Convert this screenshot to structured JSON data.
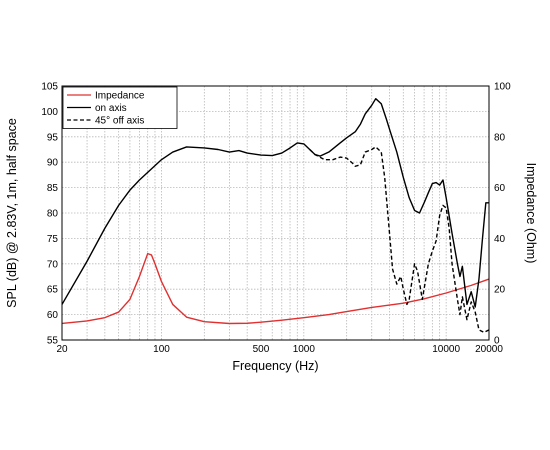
{
  "chart_data": {
    "type": "line",
    "title": "",
    "xlabel": "Frequency (Hz)",
    "ylabel": "SPL (dB) @ 2.83V, 1m, half space",
    "y2label": "Impedance (Ohm)",
    "x_scale": "log",
    "xlim": [
      20,
      20000
    ],
    "ylim": [
      55,
      105
    ],
    "y2lim": [
      0,
      100
    ],
    "grid": true,
    "legend_position": "top-left",
    "x_tick_labels": [
      {
        "value": 20,
        "label": "20"
      },
      {
        "value": 100,
        "label": "100"
      },
      {
        "value": 500,
        "label": "500"
      },
      {
        "value": 1000,
        "label": "1000"
      },
      {
        "value": 10000,
        "label": "10000"
      },
      {
        "value": 20000,
        "label": "20000"
      }
    ],
    "y_ticks": [
      55,
      60,
      65,
      70,
      75,
      80,
      85,
      90,
      95,
      100,
      105
    ],
    "y2_ticks": [
      0,
      20,
      40,
      60,
      80,
      100
    ],
    "series": [
      {
        "name": "Impedance",
        "axis": "right",
        "color": "#e03030",
        "dash": "solid",
        "points": [
          [
            20,
            6.5
          ],
          [
            30,
            7.5
          ],
          [
            40,
            8.8
          ],
          [
            50,
            11
          ],
          [
            60,
            16
          ],
          [
            70,
            25
          ],
          [
            80,
            34
          ],
          [
            85,
            33.5
          ],
          [
            90,
            30
          ],
          [
            100,
            23
          ],
          [
            120,
            14
          ],
          [
            150,
            9
          ],
          [
            200,
            7.2
          ],
          [
            300,
            6.5
          ],
          [
            400,
            6.6
          ],
          [
            500,
            7
          ],
          [
            700,
            7.8
          ],
          [
            1000,
            8.8
          ],
          [
            1500,
            10
          ],
          [
            2000,
            11.2
          ],
          [
            3000,
            12.8
          ],
          [
            5000,
            14.5
          ],
          [
            7000,
            16.2
          ],
          [
            10000,
            18.5
          ],
          [
            15000,
            21.5
          ],
          [
            20000,
            24
          ]
        ]
      },
      {
        "name": "on axis",
        "axis": "left",
        "color": "#000000",
        "dash": "solid",
        "points": [
          [
            20,
            62
          ],
          [
            30,
            70.5
          ],
          [
            40,
            77
          ],
          [
            50,
            81.5
          ],
          [
            60,
            84.5
          ],
          [
            70,
            86.5
          ],
          [
            80,
            88
          ],
          [
            100,
            90.5
          ],
          [
            120,
            92
          ],
          [
            150,
            93
          ],
          [
            200,
            92.8
          ],
          [
            250,
            92.5
          ],
          [
            300,
            92
          ],
          [
            350,
            92.3
          ],
          [
            400,
            91.8
          ],
          [
            500,
            91.4
          ],
          [
            600,
            91.3
          ],
          [
            700,
            91.8
          ],
          [
            800,
            92.8
          ],
          [
            900,
            93.8
          ],
          [
            1000,
            93.6
          ],
          [
            1100,
            92.5
          ],
          [
            1200,
            91.5
          ],
          [
            1300,
            91.2
          ],
          [
            1500,
            92
          ],
          [
            1800,
            93.8
          ],
          [
            2000,
            94.8
          ],
          [
            2300,
            96
          ],
          [
            2500,
            97.5
          ],
          [
            2700,
            99.5
          ],
          [
            3000,
            101.2
          ],
          [
            3200,
            102.5
          ],
          [
            3500,
            101.5
          ],
          [
            3800,
            98.5
          ],
          [
            4000,
            96.5
          ],
          [
            4500,
            92
          ],
          [
            5000,
            87
          ],
          [
            5500,
            83
          ],
          [
            6000,
            80.5
          ],
          [
            6500,
            80
          ],
          [
            7000,
            82
          ],
          [
            7500,
            84
          ],
          [
            8000,
            85.8
          ],
          [
            8500,
            86
          ],
          [
            9000,
            85.5
          ],
          [
            9500,
            86.5
          ],
          [
            10000,
            83
          ],
          [
            11000,
            76
          ],
          [
            12000,
            70
          ],
          [
            12500,
            67.5
          ],
          [
            13000,
            69.5
          ],
          [
            14000,
            62
          ],
          [
            15000,
            64.5
          ],
          [
            16000,
            61.5
          ],
          [
            17000,
            67
          ],
          [
            18000,
            75
          ],
          [
            19000,
            82
          ],
          [
            20000,
            82
          ]
        ]
      },
      {
        "name": "45° off axis",
        "axis": "left",
        "color": "#000000",
        "dash": "dashed",
        "points": [
          [
            1100,
            92.5
          ],
          [
            1200,
            91.5
          ],
          [
            1400,
            90.5
          ],
          [
            1600,
            90.5
          ],
          [
            1800,
            91
          ],
          [
            2000,
            90.8
          ],
          [
            2200,
            89.8
          ],
          [
            2300,
            89.2
          ],
          [
            2500,
            89.5
          ],
          [
            2700,
            92
          ],
          [
            3000,
            92.5
          ],
          [
            3200,
            93
          ],
          [
            3500,
            92
          ],
          [
            3700,
            87
          ],
          [
            4000,
            76
          ],
          [
            4200,
            69
          ],
          [
            4500,
            66
          ],
          [
            4800,
            67.5
          ],
          [
            5000,
            65
          ],
          [
            5300,
            62
          ],
          [
            5500,
            63
          ],
          [
            6000,
            70
          ],
          [
            6300,
            68.5
          ],
          [
            6800,
            63
          ],
          [
            7500,
            70
          ],
          [
            8000,
            72.5
          ],
          [
            8500,
            74.5
          ],
          [
            9000,
            79.5
          ],
          [
            9500,
            81.5
          ],
          [
            10000,
            81
          ],
          [
            10500,
            77
          ],
          [
            11000,
            70
          ],
          [
            12000,
            63
          ],
          [
            12500,
            60
          ],
          [
            13000,
            63.5
          ],
          [
            14000,
            59
          ],
          [
            15000,
            62.5
          ],
          [
            16000,
            60.5
          ],
          [
            17000,
            57
          ],
          [
            18500,
            56.5
          ],
          [
            20000,
            57
          ]
        ]
      }
    ]
  }
}
